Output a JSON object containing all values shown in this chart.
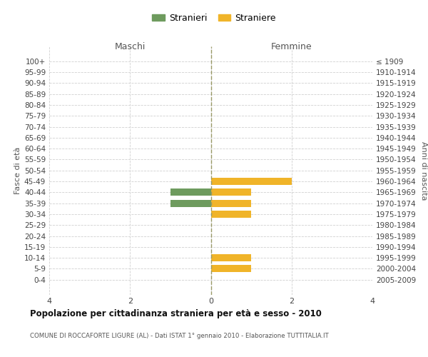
{
  "age_groups": [
    "100+",
    "95-99",
    "90-94",
    "85-89",
    "80-84",
    "75-79",
    "70-74",
    "65-69",
    "60-64",
    "55-59",
    "50-54",
    "45-49",
    "40-44",
    "35-39",
    "30-34",
    "25-29",
    "20-24",
    "15-19",
    "10-14",
    "5-9",
    "0-4"
  ],
  "birth_years": [
    "≤ 1909",
    "1910-1914",
    "1915-1919",
    "1920-1924",
    "1925-1929",
    "1930-1934",
    "1935-1939",
    "1940-1944",
    "1945-1949",
    "1950-1954",
    "1955-1959",
    "1960-1964",
    "1965-1969",
    "1970-1974",
    "1975-1979",
    "1980-1984",
    "1985-1989",
    "1990-1994",
    "1995-1999",
    "2000-2004",
    "2005-2009"
  ],
  "maschi": [
    0,
    0,
    0,
    0,
    0,
    0,
    0,
    0,
    0,
    0,
    0,
    0,
    1,
    1,
    0,
    0,
    0,
    0,
    0,
    0,
    0
  ],
  "femmine": [
    0,
    0,
    0,
    0,
    0,
    0,
    0,
    0,
    0,
    0,
    0,
    2,
    1,
    1,
    1,
    0,
    0,
    0,
    1,
    1,
    0
  ],
  "color_maschi": "#6e9b5e",
  "color_femmine": "#f0b429",
  "background_color": "#ffffff",
  "grid_color": "#d0d0d0",
  "xlim": 4,
  "title": "Popolazione per cittadinanza straniera per età e sesso - 2010",
  "subtitle": "COMUNE DI ROCCAFORTE LIGURE (AL) - Dati ISTAT 1° gennaio 2010 - Elaborazione TUTTITALIA.IT",
  "ylabel_left": "Fasce di età",
  "ylabel_right": "Anni di nascita",
  "label_maschi": "Maschi",
  "label_femmine": "Femmine",
  "legend_maschi": "Stranieri",
  "legend_femmine": "Straniere"
}
